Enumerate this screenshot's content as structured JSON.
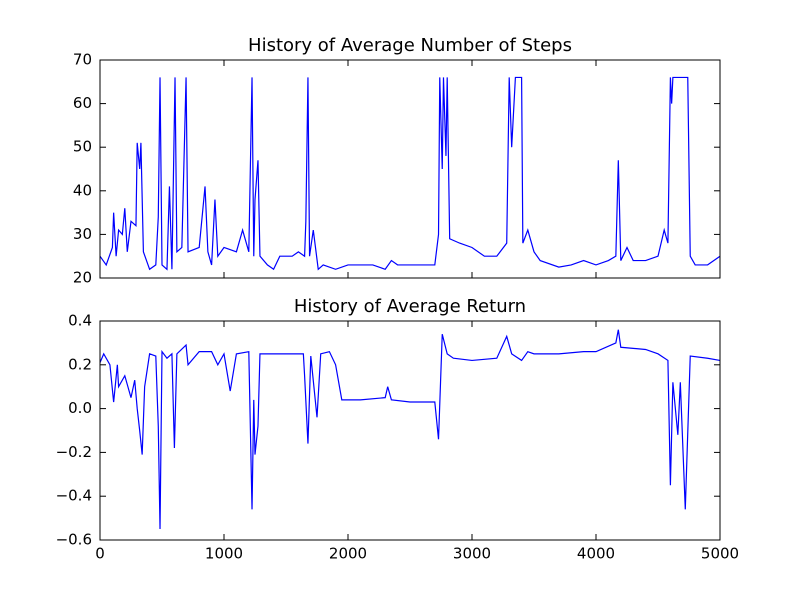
{
  "chart_data": [
    {
      "type": "line",
      "title": "History of Average Number of Steps",
      "x": [
        0,
        50,
        100,
        110,
        130,
        150,
        180,
        200,
        220,
        250,
        290,
        300,
        320,
        330,
        350,
        400,
        450,
        470,
        484,
        500,
        540,
        560,
        580,
        605,
        620,
        660,
        694,
        710,
        800,
        847,
        870,
        900,
        927,
        950,
        1000,
        1100,
        1150,
        1200,
        1226,
        1240,
        1250,
        1274,
        1290,
        1350,
        1400,
        1450,
        1550,
        1600,
        1650,
        1660,
        1677,
        1690,
        1720,
        1760,
        1800,
        1900,
        2000,
        2200,
        2300,
        2350,
        2400,
        2600,
        2700,
        2730,
        2740,
        2760,
        2770,
        2790,
        2800,
        2820,
        2900,
        3000,
        3100,
        3200,
        3280,
        3300,
        3320,
        3350,
        3400,
        3410,
        3450,
        3500,
        3550,
        3700,
        3800,
        3900,
        4000,
        4100,
        4160,
        4180,
        4200,
        4250,
        4300,
        4400,
        4500,
        4550,
        4580,
        4600,
        4610,
        4620,
        4740,
        4760,
        4800,
        4900,
        5000
      ],
      "series": [
        {
          "color": "#0000ff",
          "values": [
            25,
            23,
            27,
            35,
            25,
            31,
            30,
            36,
            26,
            33,
            32,
            51,
            45,
            51,
            26,
            22,
            23,
            34,
            66,
            23,
            22,
            41,
            22,
            66,
            26,
            27,
            66,
            26,
            27,
            41,
            26,
            23,
            38,
            25,
            27,
            26,
            31,
            26,
            66,
            25,
            38,
            47,
            25,
            23,
            22,
            25,
            25,
            26,
            25,
            33,
            66,
            25,
            31,
            22,
            23,
            22,
            23,
            23,
            22,
            24,
            23,
            23,
            23,
            30,
            66,
            45,
            66,
            48,
            66,
            29,
            28,
            27,
            25,
            25,
            28,
            66,
            50,
            66,
            66,
            28,
            31,
            26,
            24,
            22.5,
            23,
            24,
            23,
            24,
            25,
            47,
            24,
            27,
            24,
            24,
            25,
            31,
            28,
            66,
            60,
            66,
            66,
            25,
            23,
            23,
            25
          ]
        }
      ],
      "xlim": [
        0,
        5000
      ],
      "xticks": [
        0,
        1000,
        2000,
        3000,
        4000,
        5000
      ],
      "ylim": [
        20,
        70
      ],
      "yticks": [
        20,
        30,
        40,
        50,
        60,
        70
      ]
    },
    {
      "type": "line",
      "title": "History of Average Return",
      "x": [
        0,
        30,
        80,
        110,
        140,
        150,
        200,
        250,
        280,
        300,
        320,
        340,
        360,
        400,
        450,
        470,
        484,
        500,
        540,
        580,
        600,
        620,
        694,
        710,
        800,
        900,
        950,
        1000,
        1050,
        1100,
        1200,
        1226,
        1240,
        1250,
        1274,
        1290,
        1400,
        1550,
        1640,
        1650,
        1677,
        1700,
        1750,
        1780,
        1850,
        1900,
        1950,
        2100,
        2300,
        2320,
        2350,
        2500,
        2700,
        2730,
        2760,
        2800,
        2850,
        3000,
        3200,
        3280,
        3320,
        3400,
        3450,
        3500,
        3700,
        3900,
        4000,
        4160,
        4180,
        4200,
        4400,
        4500,
        4580,
        4600,
        4620,
        4660,
        4680,
        4720,
        4760,
        4900,
        5000
      ],
      "series": [
        {
          "color": "#0000ff",
          "values": [
            0.21,
            0.25,
            0.2,
            0.03,
            0.2,
            0.1,
            0.15,
            0.05,
            0.13,
            0.0,
            -0.1,
            -0.21,
            0.1,
            0.25,
            0.24,
            -0.08,
            -0.55,
            0.26,
            0.23,
            0.25,
            -0.18,
            0.25,
            0.29,
            0.2,
            0.26,
            0.26,
            0.2,
            0.25,
            0.08,
            0.25,
            0.26,
            -0.46,
            0.04,
            -0.21,
            -0.08,
            0.25,
            0.25,
            0.25,
            0.25,
            0.15,
            -0.16,
            0.24,
            -0.04,
            0.25,
            0.26,
            0.2,
            0.04,
            0.04,
            0.05,
            0.1,
            0.04,
            0.03,
            0.03,
            -0.14,
            0.34,
            0.25,
            0.23,
            0.22,
            0.23,
            0.33,
            0.25,
            0.22,
            0.26,
            0.25,
            0.25,
            0.26,
            0.26,
            0.3,
            0.36,
            0.28,
            0.27,
            0.25,
            0.22,
            -0.35,
            0.12,
            -0.12,
            0.12,
            -0.46,
            0.24,
            0.23,
            0.22
          ]
        }
      ],
      "xlim": [
        0,
        5000
      ],
      "xticks": [
        0,
        1000,
        2000,
        3000,
        4000,
        5000
      ],
      "ylim": [
        -0.6,
        0.4
      ],
      "yticks": [
        {
          "value": -0.6,
          "label": "−0.6"
        },
        {
          "value": -0.4,
          "label": "−0.4"
        },
        {
          "value": -0.2,
          "label": "−0.2"
        },
        {
          "value": 0,
          "label": "0.0"
        },
        0.2,
        0.4
      ]
    }
  ]
}
